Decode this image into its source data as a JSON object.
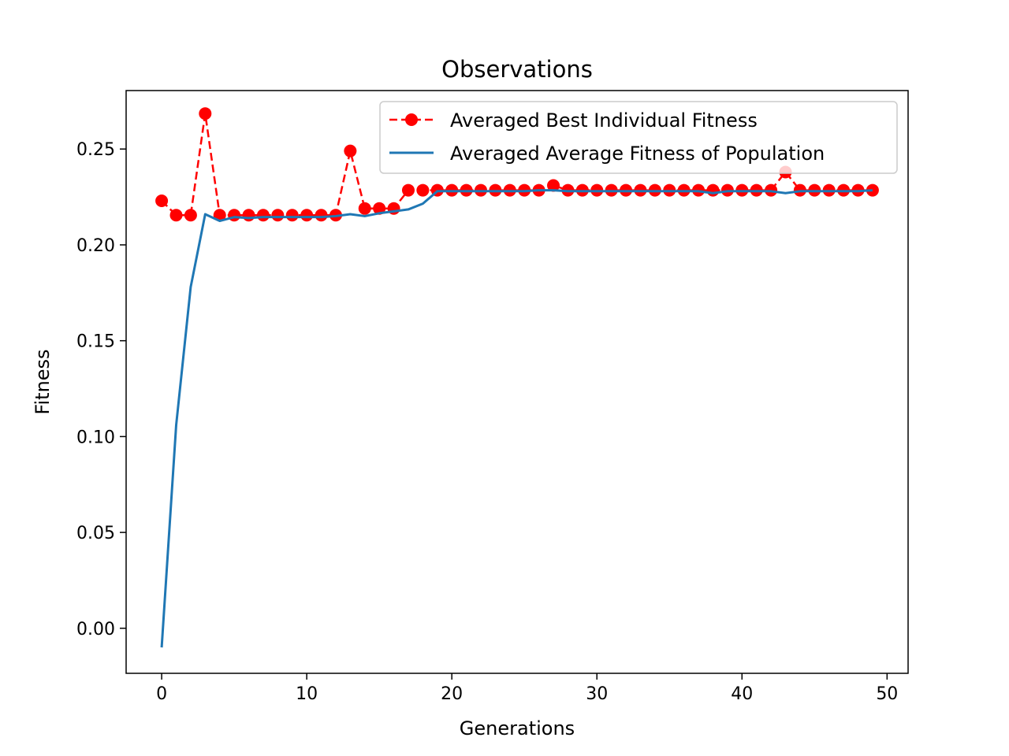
{
  "chart_data": {
    "type": "line",
    "title": "Observations",
    "xlabel": "Generations",
    "ylabel": "Fitness",
    "xlim": [
      -2.45,
      51.45
    ],
    "ylim": [
      -0.0235,
      0.2805
    ],
    "x_ticks": [
      0,
      10,
      20,
      30,
      40,
      50
    ],
    "x_tick_labels": [
      "0",
      "10",
      "20",
      "30",
      "40",
      "50"
    ],
    "y_ticks": [
      0.0,
      0.05,
      0.1,
      0.15,
      0.2,
      0.25
    ],
    "y_tick_labels": [
      "0.00",
      "0.05",
      "0.10",
      "0.15",
      "0.20",
      "0.25"
    ],
    "grid": false,
    "legend_position": "top-right",
    "series": [
      {
        "name": "Averaged Best Individual Fitness",
        "color": "#ff0000",
        "line_style": "dashed",
        "marker": "circle",
        "x": [
          0,
          1,
          2,
          3,
          4,
          5,
          6,
          7,
          8,
          9,
          10,
          11,
          12,
          13,
          14,
          15,
          16,
          17,
          18,
          19,
          20,
          21,
          22,
          23,
          24,
          25,
          26,
          27,
          28,
          29,
          30,
          31,
          32,
          33,
          34,
          35,
          36,
          37,
          38,
          39,
          40,
          41,
          42,
          43,
          44,
          45,
          46,
          47,
          48,
          49
        ],
        "y": [
          0.223,
          0.2155,
          0.2155,
          0.2685,
          0.2155,
          0.2155,
          0.2155,
          0.2155,
          0.2155,
          0.2155,
          0.2155,
          0.2155,
          0.2155,
          0.249,
          0.219,
          0.219,
          0.219,
          0.2285,
          0.2285,
          0.2285,
          0.2285,
          0.2285,
          0.2285,
          0.2285,
          0.2285,
          0.2285,
          0.2285,
          0.231,
          0.2285,
          0.2285,
          0.2285,
          0.2285,
          0.2285,
          0.2285,
          0.2285,
          0.2285,
          0.2285,
          0.2285,
          0.2285,
          0.2285,
          0.2285,
          0.2285,
          0.2285,
          0.238,
          0.2285,
          0.2285,
          0.2285,
          0.2285,
          0.2285,
          0.2285
        ]
      },
      {
        "name": "Averaged Average Fitness of Population",
        "color": "#1f77b4",
        "line_style": "solid",
        "marker": "none",
        "x": [
          0,
          1,
          2,
          3,
          4,
          5,
          6,
          7,
          8,
          9,
          10,
          11,
          12,
          13,
          14,
          15,
          16,
          17,
          18,
          19,
          20,
          21,
          22,
          23,
          24,
          25,
          26,
          27,
          28,
          29,
          30,
          31,
          32,
          33,
          34,
          35,
          36,
          37,
          38,
          39,
          40,
          41,
          42,
          43,
          44,
          45,
          46,
          47,
          48,
          49
        ],
        "y": [
          -0.01,
          0.106,
          0.178,
          0.216,
          0.2125,
          0.2145,
          0.214,
          0.2145,
          0.2145,
          0.2145,
          0.2145,
          0.2145,
          0.215,
          0.216,
          0.215,
          0.2165,
          0.2175,
          0.2185,
          0.2215,
          0.228,
          0.228,
          0.228,
          0.228,
          0.228,
          0.228,
          0.228,
          0.2285,
          0.2285,
          0.228,
          0.228,
          0.228,
          0.228,
          0.228,
          0.228,
          0.228,
          0.228,
          0.228,
          0.228,
          0.227,
          0.228,
          0.228,
          0.228,
          0.228,
          0.227,
          0.228,
          0.228,
          0.228,
          0.228,
          0.228,
          0.2285
        ]
      }
    ]
  }
}
